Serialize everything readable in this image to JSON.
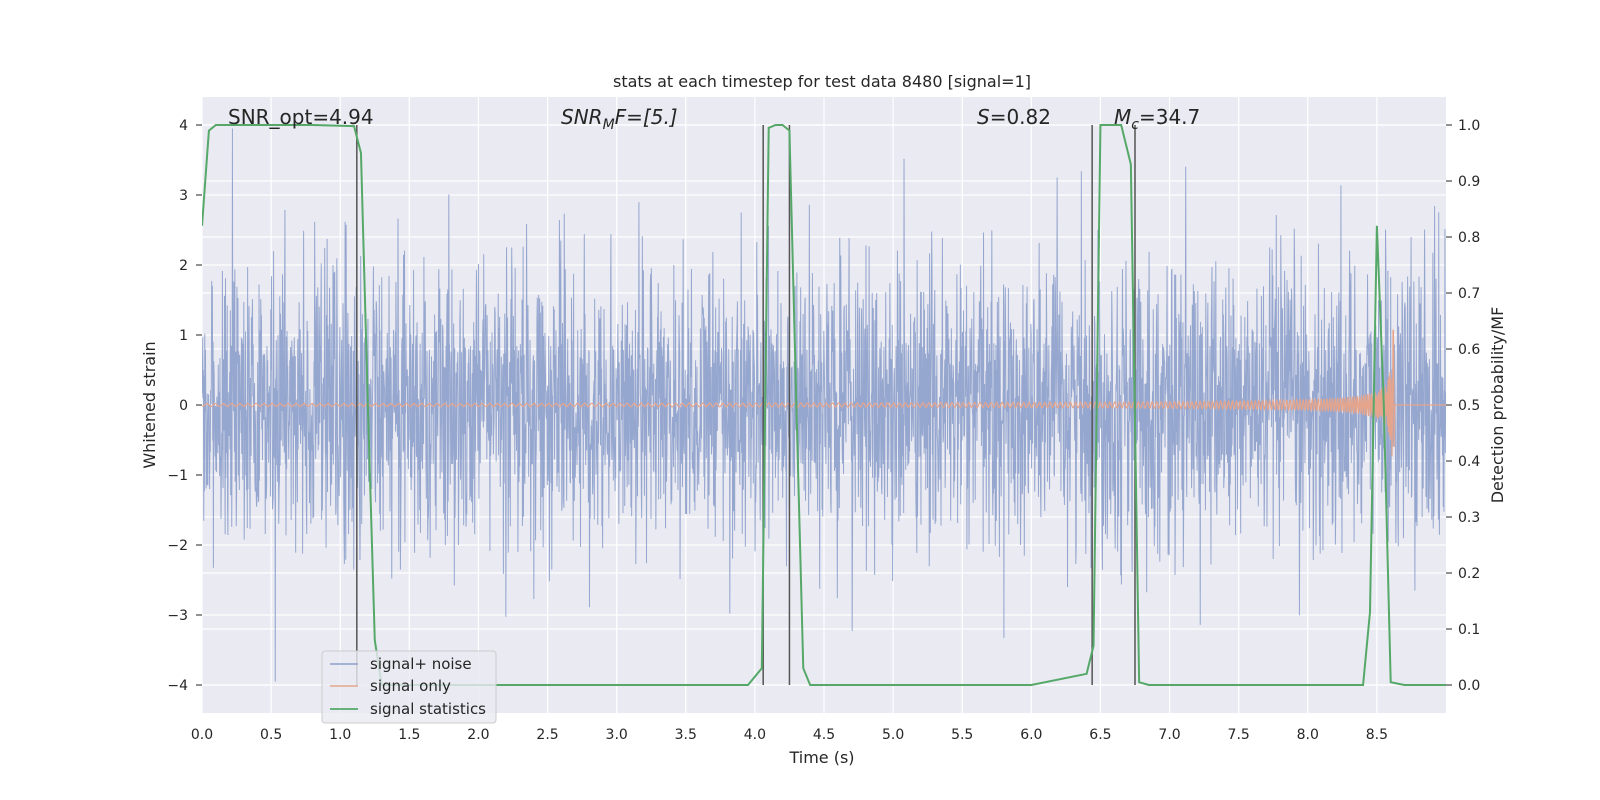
{
  "chart_data": {
    "type": "line",
    "title": "stats at each timestep for test data 8480 [signal=1]",
    "xlabel": "Time (s)",
    "ylabel": "Whitened strain",
    "y2label": "Detection probability/MF",
    "xlim": [
      0.0,
      9.0
    ],
    "ylim": [
      -4.4,
      4.4
    ],
    "y2lim": [
      -0.05,
      1.05
    ],
    "xticks": [
      "0.0",
      "0.5",
      "1.0",
      "1.5",
      "2.0",
      "2.5",
      "3.0",
      "3.5",
      "4.0",
      "4.5",
      "5.0",
      "5.5",
      "6.0",
      "6.5",
      "7.0",
      "7.5",
      "8.0",
      "8.5"
    ],
    "yticks": [
      "4",
      "3",
      "2",
      "1",
      "0",
      "−1",
      "−2",
      "−3",
      "−4"
    ],
    "y2ticks": [
      "1.0",
      "0.9",
      "0.8",
      "0.7",
      "0.6",
      "0.5",
      "0.4",
      "0.3",
      "0.2",
      "0.1",
      "0.0"
    ],
    "grid": true,
    "legend_position": "lower-left",
    "annotations": {
      "snr_opt": "SNR_opt=4.94",
      "snr_mf_main": "SNR",
      "snr_mf_sub": "M",
      "snr_mf_rest": "F=[5.]",
      "s_main": "S",
      "s_rest": "=0.82",
      "mc_main": "M",
      "mc_sub": "c",
      "mc_rest": "=34.7"
    },
    "series": [
      {
        "name": "signal+ noise",
        "color": "#8da0cb",
        "description_values": "whitened noise, approx amplitude range -4 to 4"
      },
      {
        "name": "signal only",
        "color": "#e5a58d",
        "chirp_peak_time": 8.62,
        "chirp_peak_amplitude": 1.3
      },
      {
        "name": "signal statistics",
        "color": "#55a868",
        "x": [
          0.0,
          0.05,
          0.1,
          0.2,
          0.5,
          0.8,
          1.1,
          1.15,
          1.2,
          1.25,
          1.3,
          1.4,
          2.0,
          3.0,
          3.95,
          4.05,
          4.1,
          4.15,
          4.2,
          4.25,
          4.3,
          4.35,
          4.4,
          4.45,
          5.0,
          6.0,
          6.4,
          6.45,
          6.5,
          6.55,
          6.65,
          6.72,
          6.78,
          6.85,
          7.0,
          8.0,
          8.4,
          8.45,
          8.5,
          8.55,
          8.6,
          8.7,
          9.0
        ],
        "y": [
          0.82,
          0.99,
          1.0,
          1.0,
          1.0,
          1.0,
          0.998,
          0.95,
          0.5,
          0.08,
          0.0,
          0.0,
          0.0,
          0.0,
          0.0,
          0.03,
          0.995,
          1.0,
          1.0,
          0.99,
          0.5,
          0.03,
          0.0,
          0.0,
          0.0,
          0.0,
          0.02,
          0.07,
          1.0,
          1.0,
          1.0,
          0.93,
          0.005,
          0.0,
          0.0,
          0.0,
          0.0,
          0.13,
          0.82,
          0.5,
          0.005,
          0.0,
          0.0
        ]
      }
    ],
    "vertical_lines_x": [
      1.12,
      4.06,
      4.25,
      6.44,
      6.75
    ]
  }
}
